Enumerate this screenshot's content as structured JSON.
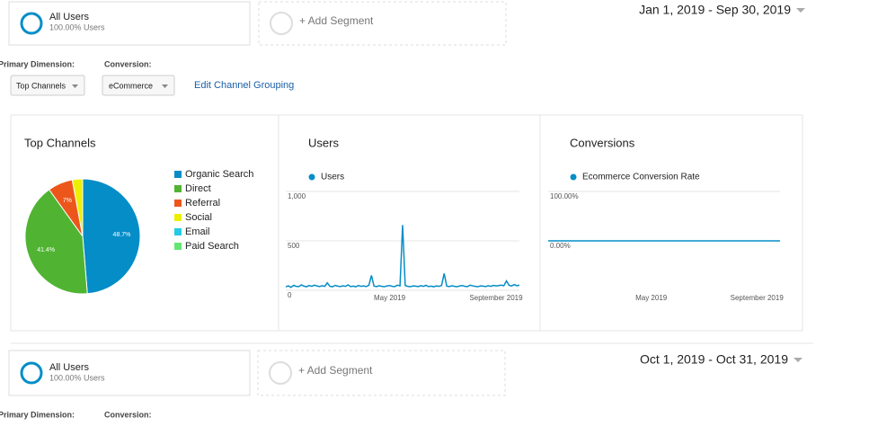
{
  "segments_top": {
    "segment_name": "All Users",
    "segment_share": "100.00% Users",
    "add_segment": "+ Add Segment",
    "date_range": "Jan 1, 2019 - Sep 30, 2019"
  },
  "controls": {
    "primary_dimension_label": "Primary Dimension:",
    "conversion_label": "Conversion:",
    "primary_dimension_value": "Top Channels",
    "conversion_value": "eCommerce",
    "edit_link": "Edit Channel Grouping"
  },
  "chart_data": [
    {
      "type": "pie",
      "title": "Top Channels",
      "categories": [
        "Organic Search",
        "Direct",
        "Referral",
        "Social",
        "Email",
        "Paid Search"
      ],
      "values": [
        48.7,
        41.4,
        7,
        2.9,
        0,
        0
      ],
      "value_labels": [
        "48.7%",
        "41.4%",
        "7%",
        null,
        null,
        null
      ],
      "colors": [
        "#058dc7",
        "#50b432",
        "#ed561b",
        "#edef00",
        "#24cbe5",
        "#64e572"
      ]
    },
    {
      "type": "line",
      "title": "Users",
      "categories": [
        null,
        null,
        null,
        null,
        null,
        null,
        null,
        null,
        null,
        null,
        null,
        null,
        null,
        null,
        null,
        null,
        null,
        null,
        null,
        null,
        null,
        null,
        null,
        null,
        null,
        null,
        null,
        null,
        null,
        null,
        null,
        null,
        null,
        null,
        null,
        null,
        null,
        null,
        null,
        null,
        "May 2019",
        null,
        null,
        null,
        null,
        null,
        null,
        null,
        null,
        null,
        null,
        null,
        null,
        null,
        null,
        null,
        null,
        null,
        null,
        null,
        null,
        null,
        null,
        null,
        null,
        null,
        null,
        null,
        null,
        null,
        null,
        null,
        null,
        null,
        null,
        null,
        null,
        null,
        null,
        null,
        null,
        "September 2019",
        null,
        null,
        null,
        null,
        null,
        null,
        null,
        null,
        null
      ],
      "series": [
        {
          "name": "Users",
          "color": "#058dc7",
          "values": [
            35,
            45,
            30,
            50,
            40,
            38,
            55,
            42,
            36,
            48,
            40,
            52,
            44,
            38,
            46,
            40,
            75,
            40,
            36,
            50,
            42,
            38,
            45,
            40,
            55,
            38,
            42,
            36,
            48,
            40,
            44,
            38,
            50,
            150,
            42,
            38,
            46,
            40,
            36,
            44,
            48,
            40,
            38,
            52,
            45,
            660,
            48,
            40,
            36,
            44,
            42,
            38,
            46,
            40,
            50,
            38,
            42,
            36,
            44,
            40,
            48,
            170,
            42,
            38,
            46,
            40,
            36,
            44,
            48,
            40,
            38,
            52,
            45,
            40,
            36,
            44,
            42,
            38,
            46,
            40,
            50,
            44,
            48,
            52,
            46,
            95,
            50,
            44,
            58,
            46,
            52
          ]
        }
      ],
      "ylim": [
        0,
        1000
      ],
      "yticks": [
        0,
        500,
        {
          "value": 1000,
          "label": "1,000"
        }
      ]
    },
    {
      "type": "line",
      "title": "Conversions",
      "categories": [
        null,
        null,
        null,
        null,
        null,
        null,
        null,
        null,
        null,
        null,
        null,
        null,
        null,
        null,
        null,
        null,
        null,
        null,
        null,
        null,
        null,
        null,
        null,
        null,
        null,
        null,
        null,
        null,
        null,
        null,
        null,
        null,
        null,
        null,
        null,
        null,
        null,
        null,
        null,
        null,
        "May 2019",
        null,
        null,
        null,
        null,
        null,
        null,
        null,
        null,
        null,
        null,
        null,
        null,
        null,
        null,
        null,
        null,
        null,
        null,
        null,
        null,
        null,
        null,
        null,
        null,
        null,
        null,
        null,
        null,
        null,
        null,
        null,
        null,
        null,
        null,
        null,
        null,
        null,
        null,
        null,
        null,
        "September 2019",
        null,
        null,
        null,
        null,
        null,
        null,
        null,
        null,
        null
      ],
      "series": [
        {
          "name": "Ecommerce Conversion Rate",
          "color": "#058dc7",
          "values": [
            0,
            0,
            0,
            0,
            0,
            0,
            0,
            0,
            0,
            0,
            0,
            0,
            0,
            0,
            0,
            0,
            0,
            0,
            0,
            0,
            0,
            0,
            0,
            0,
            0,
            0,
            0,
            0,
            0,
            0,
            0,
            0,
            0,
            0,
            0,
            0,
            0,
            0,
            0,
            0,
            0,
            0,
            0,
            0,
            0,
            0,
            0,
            0,
            0,
            0,
            0,
            0,
            0,
            0,
            0,
            0,
            0,
            0,
            0,
            0,
            0,
            0,
            0,
            0,
            0,
            0,
            0,
            0,
            0,
            0,
            0,
            0,
            0,
            0,
            0,
            0,
            0,
            0,
            0,
            0,
            0,
            0,
            0,
            0,
            0,
            0,
            0,
            0,
            0,
            0,
            0
          ]
        }
      ],
      "ylim": [
        -100,
        100
      ],
      "yticks": [
        {
          "value": 0,
          "label": "0.00%"
        },
        {
          "value": 100,
          "label": "100.00%"
        }
      ]
    }
  ],
  "segments_bottom": {
    "segment_name": "All Users",
    "segment_share": "100.00% Users",
    "add_segment": "+ Add Segment",
    "date_range": "Oct 1, 2019 - Oct 31, 2019",
    "primary_dimension_label": "Primary Dimension:",
    "conversion_label": "Conversion:"
  }
}
